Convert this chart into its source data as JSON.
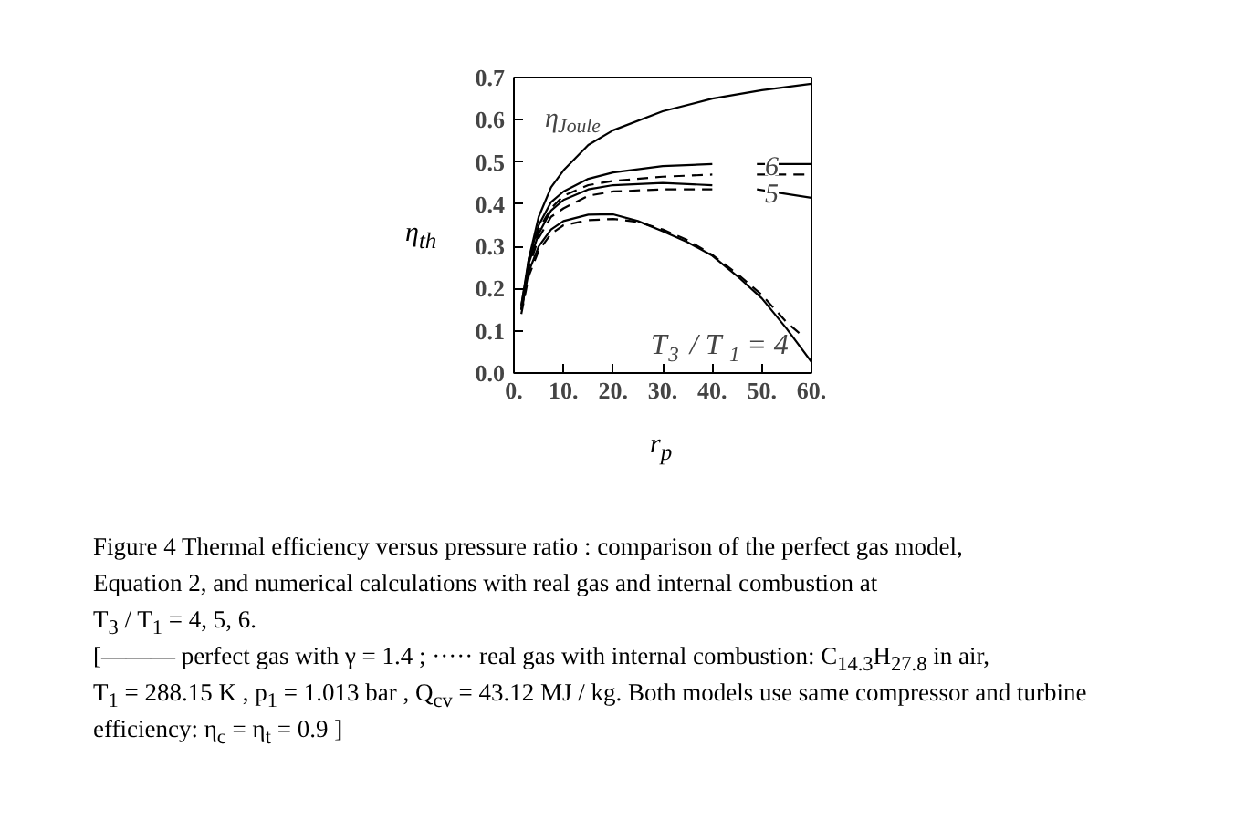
{
  "chart_data": {
    "type": "line",
    "xlabel": "r$_{p}$",
    "ylabel": "η$_{th}$",
    "xlim": [
      0,
      60
    ],
    "ylim": [
      0,
      0.7
    ],
    "xticks": [
      {
        "value": 0,
        "label": "0."
      },
      {
        "value": 10,
        "label": "10."
      },
      {
        "value": 20,
        "label": "20."
      },
      {
        "value": 30,
        "label": "30."
      },
      {
        "value": 40,
        "label": "40."
      },
      {
        "value": 50,
        "label": "50."
      },
      {
        "value": 60,
        "label": "60."
      }
    ],
    "yticks": [
      {
        "value": 0,
        "label": "0.0"
      },
      {
        "value": 0.1,
        "label": "0.1"
      },
      {
        "value": 0.2,
        "label": "0.2"
      },
      {
        "value": 0.3,
        "label": "0.3"
      },
      {
        "value": 0.4,
        "label": "0.4"
      },
      {
        "value": 0.5,
        "label": "0.5"
      },
      {
        "value": 0.6,
        "label": "0.6"
      },
      {
        "value": 0.7,
        "label": "0.7"
      }
    ],
    "grid": false,
    "series": [
      {
        "color": "#000000",
        "line_style": "solid",
        "x": [
          1.8,
          3,
          5,
          7.5,
          10,
          15,
          20,
          30,
          40,
          50,
          60
        ],
        "values": [
          0.16,
          0.27,
          0.37,
          0.44,
          0.48,
          0.54,
          0.575,
          0.62,
          0.65,
          0.67,
          0.685
        ]
      },
      {
        "color": "#000000",
        "line_style": "solid",
        "x": [
          1.5,
          3,
          5,
          7.5,
          10,
          15,
          20,
          30,
          40
        ],
        "values": [
          0.16,
          0.27,
          0.35,
          0.405,
          0.43,
          0.46,
          0.475,
          0.49,
          0.495
        ]
      },
      {
        "color": "#000000",
        "line_style": "solid",
        "x": [
          49,
          60
        ],
        "values": [
          0.495,
          0.495
        ]
      },
      {
        "color": "#000000",
        "line_style": "dashed",
        "x": [
          1.5,
          3,
          5,
          7.5,
          10,
          15,
          20,
          30,
          40
        ],
        "values": [
          0.15,
          0.26,
          0.34,
          0.39,
          0.42,
          0.445,
          0.455,
          0.465,
          0.47
        ]
      },
      {
        "color": "#000000",
        "line_style": "dashed",
        "x": [
          49,
          60
        ],
        "values": [
          0.47,
          0.47
        ]
      },
      {
        "color": "#000000",
        "line_style": "solid",
        "x": [
          1.5,
          3,
          5,
          7.5,
          10,
          15,
          20,
          30,
          40
        ],
        "values": [
          0.16,
          0.26,
          0.33,
          0.385,
          0.41,
          0.435,
          0.445,
          0.45,
          0.445
        ]
      },
      {
        "color": "#000000",
        "line_style": "solid",
        "x": [
          49,
          60
        ],
        "values": [
          0.435,
          0.415
        ]
      },
      {
        "color": "#000000",
        "line_style": "dashed",
        "x": [
          1.5,
          3,
          5,
          7.5,
          10,
          15,
          20,
          30,
          40
        ],
        "values": [
          0.15,
          0.25,
          0.32,
          0.37,
          0.39,
          0.42,
          0.43,
          0.435,
          0.435
        ]
      },
      {
        "color": "#000000",
        "line_style": "solid",
        "x": [
          1.5,
          3,
          5,
          7.5,
          10,
          15,
          20,
          25,
          30,
          35,
          40,
          45,
          50,
          55,
          60
        ],
        "values": [
          0.15,
          0.24,
          0.3,
          0.34,
          0.36,
          0.375,
          0.376,
          0.36,
          0.336,
          0.31,
          0.278,
          0.23,
          0.177,
          0.105,
          0.026
        ]
      },
      {
        "color": "#000000",
        "line_style": "dashed",
        "x": [
          1.5,
          3,
          5,
          7.5,
          10,
          15,
          20,
          25,
          30,
          35,
          40,
          45,
          50,
          55,
          58
        ],
        "values": [
          0.14,
          0.23,
          0.29,
          0.33,
          0.35,
          0.362,
          0.365,
          0.358,
          0.34,
          0.315,
          0.28,
          0.235,
          0.185,
          0.12,
          0.09
        ]
      }
    ],
    "annotations": [
      "η$_{Joule}$",
      {
        "text": "6",
        "x": 52,
        "y": 0.49
      },
      {
        "text": "5",
        "x": 52,
        "y": 0.425
      },
      "T$_{3}$ / T$_{1}$ = 4",
      "Figure 4    Thermal efficiency versus pressure ratio : comparison of the perfect gas model,",
      "Equation 2, and numerical calculations with real gas and internal combustion at",
      "T$_{3}$ / T$_{1}$ = 4,  5,  6.",
      "[——— perfect gas with   γ = 1.4 ;   ····· real gas with internal combustion: C$_{14.3}$H$_{27.8}$ in air,",
      "T$_{1}$ = 288.15 K ,  p$_{1}$ = 1.013 bar ,  Q$_{cv}$ = 43.12 MJ / kg.  Both models use same compressor and turbine",
      "efficiency:   η$_{c}$ = η$_{t}$ = 0.9 ]"
    ]
  }
}
